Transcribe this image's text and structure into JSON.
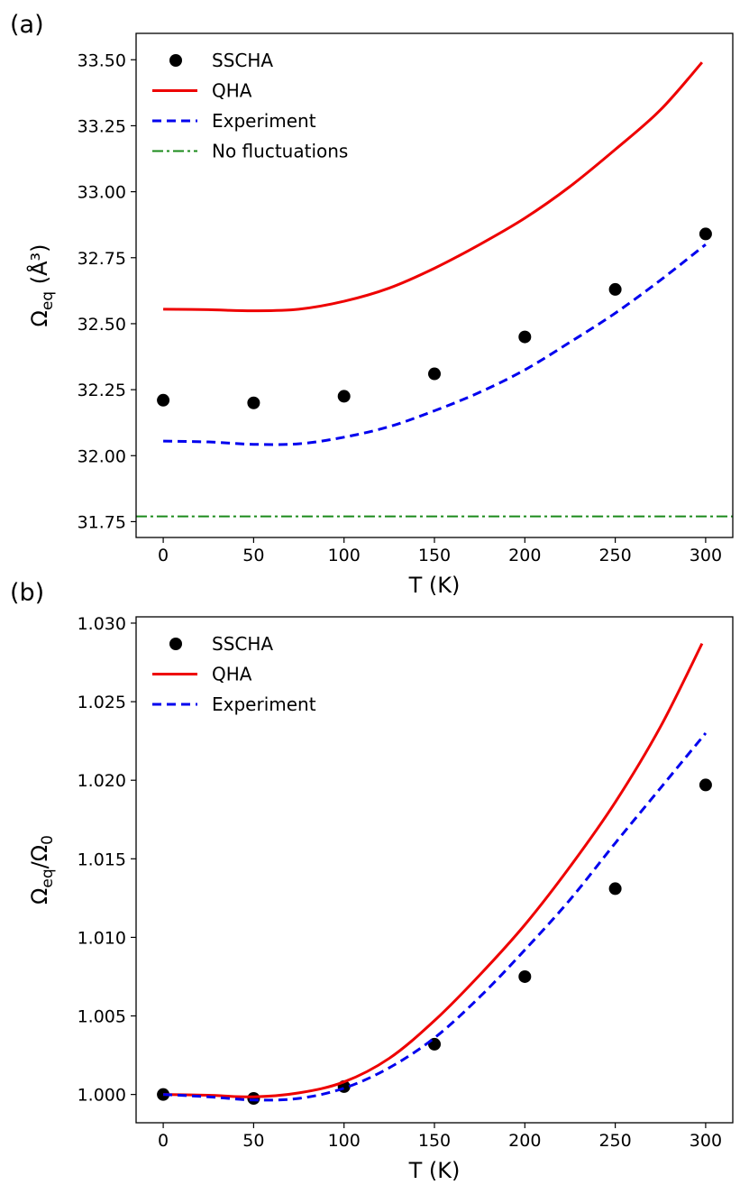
{
  "chart_data": [
    {
      "type": "line",
      "panel_label": "(a)",
      "xlabel": "T (K)",
      "ylabel_main": "Ω",
      "ylabel_sub": "eq",
      "ylabel_unit": "(Å³)",
      "xlim": [
        -15,
        315
      ],
      "ylim": [
        31.69,
        33.6
      ],
      "xticks": [
        0,
        50,
        100,
        150,
        200,
        250,
        300
      ],
      "yticks": [
        31.75,
        32.0,
        32.25,
        32.5,
        32.75,
        33.0,
        33.25,
        33.5
      ],
      "ytick_labels": [
        "31.75",
        "32.00",
        "32.25",
        "32.50",
        "32.75",
        "33.00",
        "33.25",
        "33.50"
      ],
      "legend_position": "top-left",
      "series": [
        {
          "name": "SSCHA",
          "kind": "scatter",
          "color": "#000000",
          "x": [
            0,
            50,
            100,
            150,
            200,
            250,
            300
          ],
          "y": [
            32.21,
            32.2,
            32.225,
            32.31,
            32.45,
            32.63,
            32.84
          ]
        },
        {
          "name": "QHA",
          "kind": "line",
          "style": "solid",
          "color": "#ee0000",
          "x": [
            0,
            25,
            50,
            75,
            100,
            125,
            150,
            175,
            200,
            225,
            250,
            275,
            298
          ],
          "y": [
            32.555,
            32.553,
            32.549,
            32.555,
            32.585,
            32.635,
            32.71,
            32.8,
            32.9,
            33.02,
            33.16,
            33.31,
            33.49
          ]
        },
        {
          "name": "Experiment",
          "kind": "line",
          "style": "dashed",
          "color": "#0000ee",
          "x": [
            0,
            25,
            50,
            75,
            100,
            125,
            150,
            175,
            200,
            225,
            250,
            275,
            300
          ],
          "y": [
            32.055,
            32.052,
            32.043,
            32.045,
            32.07,
            32.11,
            32.17,
            32.24,
            32.325,
            32.43,
            32.54,
            32.665,
            32.8
          ]
        },
        {
          "name": "No fluctuations",
          "kind": "line",
          "style": "dashdot",
          "color": "#1a8a1a",
          "x": [
            -15,
            315
          ],
          "y": [
            31.77,
            31.77
          ]
        }
      ]
    },
    {
      "type": "line",
      "panel_label": "(b)",
      "xlabel": "T (K)",
      "ylabel_main": "Ω",
      "ylabel_sub": "eq",
      "ylabel_mid": "/Ω",
      "ylabel_sub2": "0",
      "xlim": [
        -15,
        315
      ],
      "ylim": [
        0.9982,
        1.0304
      ],
      "xticks": [
        0,
        50,
        100,
        150,
        200,
        250,
        300
      ],
      "yticks": [
        1.0,
        1.005,
        1.01,
        1.015,
        1.02,
        1.025,
        1.03
      ],
      "ytick_labels": [
        "1.000",
        "1.005",
        "1.010",
        "1.015",
        "1.020",
        "1.025",
        "1.030"
      ],
      "legend_position": "top-left",
      "series": [
        {
          "name": "SSCHA",
          "kind": "scatter",
          "color": "#000000",
          "x": [
            0,
            50,
            100,
            150,
            200,
            250,
            300
          ],
          "y": [
            1.0,
            0.99975,
            1.0005,
            1.0032,
            1.0075,
            1.0131,
            1.0197
          ]
        },
        {
          "name": "QHA",
          "kind": "line",
          "style": "solid",
          "color": "#ee0000",
          "x": [
            0,
            25,
            50,
            75,
            100,
            125,
            150,
            175,
            200,
            225,
            250,
            275,
            298
          ],
          "y": [
            1.0,
            0.99995,
            0.99985,
            1.0001,
            1.0008,
            1.0023,
            1.0047,
            1.0076,
            1.0108,
            1.0145,
            1.0186,
            1.0234,
            1.0287
          ]
        },
        {
          "name": "Experiment",
          "kind": "line",
          "style": "dashed",
          "color": "#0000ee",
          "x": [
            0,
            25,
            50,
            75,
            100,
            125,
            150,
            175,
            200,
            225,
            250,
            275,
            300
          ],
          "y": [
            1.0,
            0.99985,
            0.99965,
            0.99975,
            1.0004,
            1.0017,
            1.0036,
            1.0062,
            1.0092,
            1.0124,
            1.016,
            1.0195,
            1.023
          ]
        }
      ]
    }
  ]
}
